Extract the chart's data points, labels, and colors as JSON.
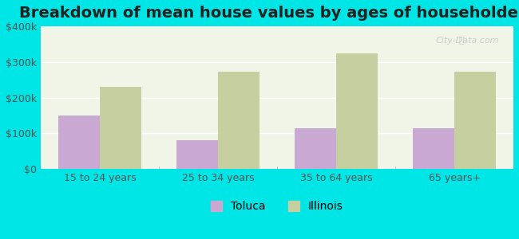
{
  "title": "Breakdown of mean house values by ages of householders",
  "categories": [
    "15 to 24 years",
    "25 to 34 years",
    "35 to 64 years",
    "65 years+"
  ],
  "toluca_values": [
    150000,
    80000,
    115000,
    115000
  ],
  "illinois_values": [
    230000,
    272000,
    325000,
    272000
  ],
  "toluca_color": "#c9a8d4",
  "illinois_color": "#c5cfa0",
  "background_color": "#00e5e5",
  "plot_bg_start": "#e8f5e0",
  "plot_bg_end": "#f5f5f0",
  "ylim": [
    0,
    400000
  ],
  "yticks": [
    0,
    100000,
    200000,
    300000,
    400000
  ],
  "ytick_labels": [
    "$0",
    "$100k",
    "$200k",
    "$300k",
    "$400k"
  ],
  "bar_width": 0.35,
  "legend_labels": [
    "Toluca",
    "Illinois"
  ],
  "watermark": "City-Data.com",
  "title_fontsize": 14,
  "tick_fontsize": 9,
  "legend_fontsize": 10
}
